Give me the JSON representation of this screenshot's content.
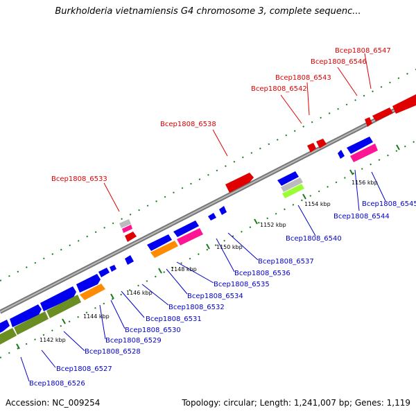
{
  "title": "Burkholderia vietnamiensis G4 chromosome 3, complete sequenc...",
  "footer": {
    "accession": "Accession: NC_009254",
    "summary": "Topology: circular; Length: 1,241,007 bp; Genes: 1,119"
  },
  "colors": {
    "forward_strand": "#ff0000",
    "reverse_strand": "#0000ff",
    "backbone": "#888888",
    "ticks": "#1a7a1a",
    "orange_feature": "#ff8c00",
    "magenta_feature": "#ff1493",
    "olive_feature": "#6b8e23",
    "grey_feature": "#aaaaaa",
    "lime_feature": "#99ff33"
  },
  "scale_labels": [
    "1142 kbp",
    "1144 kbp",
    "1146 kbp",
    "1148 kbp",
    "1150 kbp",
    "1152 kbp",
    "1154 kbp",
    "1156 kbp"
  ],
  "gene_labels_top": [
    "Bcep1808_6533",
    "Bcep1808_6538",
    "Bcep1808_6542",
    "Bcep1808_6543",
    "Bcep1808_6546",
    "Bcep1808_6547"
  ],
  "gene_labels_bottom": [
    "Bcep1808_6526",
    "Bcep1808_6527",
    "Bcep1808_6528",
    "Bcep1808_6529",
    "Bcep1808_6530",
    "Bcep1808_6531",
    "Bcep1808_6532",
    "Bcep1808_6534",
    "Bcep1808_6535",
    "Bcep1808_6536",
    "Bcep1808_6537",
    "Bcep1808_6540",
    "Bcep1808_6544",
    "Bcep1808_6545"
  ]
}
